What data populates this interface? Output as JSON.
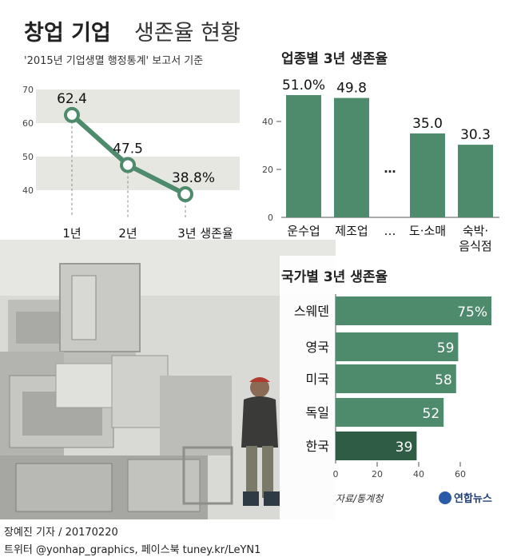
{
  "header": {
    "title_bold": "창업 기업",
    "title_light": "생존율 현황",
    "subtitle": "'2015년 기업생멸 행정통계' 보고서 기준"
  },
  "colors": {
    "accent": "#4e8a6c",
    "accent_dark": "#2f5c45",
    "band": "#e7e7e2",
    "text": "#222222"
  },
  "chart_data": [
    {
      "type": "line",
      "categories": [
        "1년",
        "2년",
        "3년 생존율"
      ],
      "values": [
        62.4,
        47.5,
        38.8
      ],
      "data_labels": [
        "62.4",
        "47.5",
        "38.8%"
      ],
      "yticks": [
        "70",
        "60",
        "50",
        "40"
      ],
      "ylim": [
        40,
        70
      ]
    },
    {
      "type": "bar",
      "title": "업종별 3년 생존율",
      "categories": [
        "운수업",
        "제조업",
        "…",
        "도·소매",
        "숙박·음식점"
      ],
      "category_lines": [
        [
          "운수업"
        ],
        [
          "제조업"
        ],
        [
          "…"
        ],
        [
          "도·소매"
        ],
        [
          "숙박·",
          "음식점"
        ]
      ],
      "values": [
        51.0,
        49.8,
        null,
        35.0,
        30.3
      ],
      "data_labels": [
        "51.0%",
        "49.8",
        "",
        "35.0",
        "30.3"
      ],
      "yticks": [
        "40",
        "20",
        "0"
      ],
      "ylim": [
        0,
        60
      ]
    },
    {
      "type": "bar",
      "orientation": "horizontal",
      "title": "국가별 3년 생존율",
      "categories": [
        "스웨덴",
        "영국",
        "미국",
        "독일",
        "한국"
      ],
      "values": [
        75,
        59,
        58,
        52,
        39
      ],
      "data_labels": [
        "75%",
        "59",
        "58",
        "52",
        "39"
      ],
      "xticks": [
        "0",
        "20",
        "40",
        "60"
      ],
      "xlim": [
        0,
        80
      ]
    }
  ],
  "footer": {
    "source": "자료/통계청",
    "logo": "연합뉴스",
    "credit": "장예진 기자 / 20170220",
    "social": "트위터 @yonhap_graphics, 페이스북 tuney.kr/LeYN1"
  }
}
